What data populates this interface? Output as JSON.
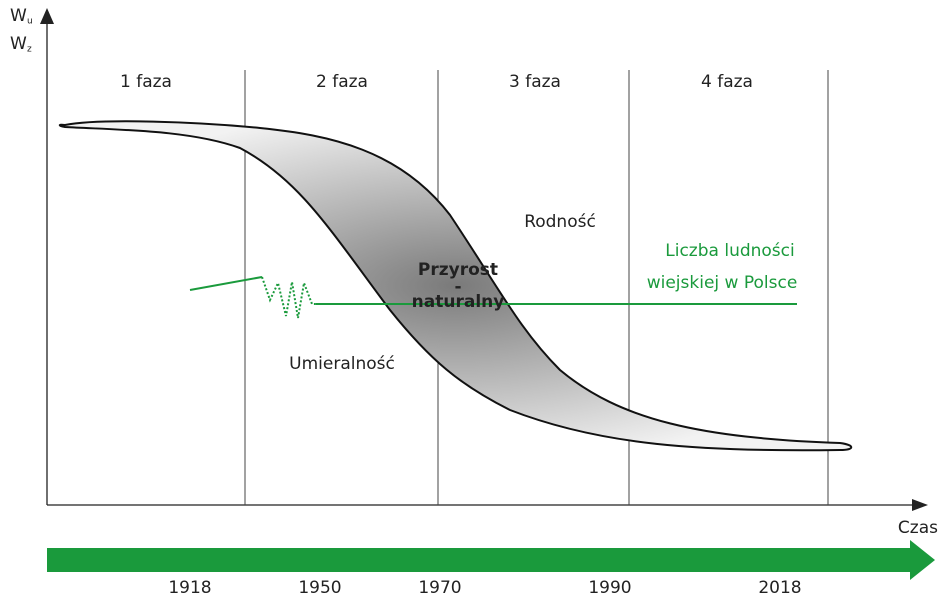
{
  "axes": {
    "y_label_1": "W",
    "y_label_1_sub": "u",
    "y_label_2": "W",
    "y_label_2_sub": "z",
    "x_label": "Czas"
  },
  "phases": [
    "1 faza",
    "2 faza",
    "3 faza",
    "4 faza"
  ],
  "curves": {
    "birth_rate": "Rodność",
    "death_rate": "Umieralność",
    "growth": [
      "Przyrost",
      "-",
      "naturalny"
    ]
  },
  "rural_population": [
    "Liczba ludności",
    "wiejskiej w Polsce"
  ],
  "years": [
    "1918",
    "1950",
    "1970",
    "1990",
    "2018"
  ]
}
